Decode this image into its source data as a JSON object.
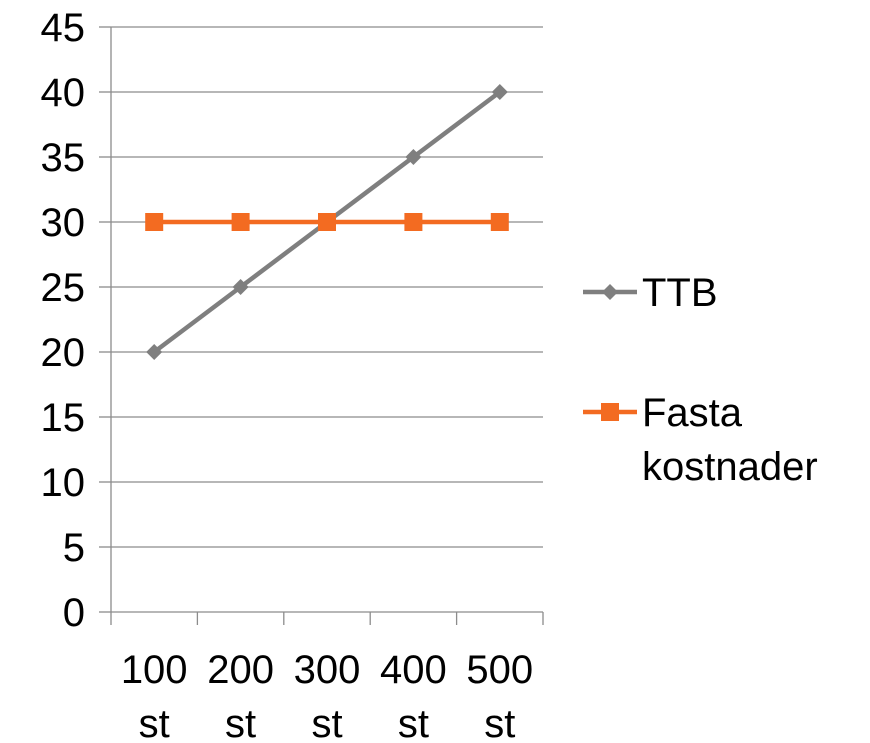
{
  "chart_data": {
    "type": "line",
    "title": "",
    "xlabel": "",
    "ylabel": "",
    "categories": [
      [
        "100",
        "st"
      ],
      [
        "200",
        "st"
      ],
      [
        "300",
        "st"
      ],
      [
        "400",
        "st"
      ],
      [
        "500",
        "st"
      ]
    ],
    "ylim": [
      0,
      45
    ],
    "ytick_step": 5,
    "grid": true,
    "legend_position": "right",
    "series": [
      {
        "name": "TTB",
        "values": [
          20,
          25,
          30,
          35,
          40
        ],
        "color": "#7f7f7f",
        "marker": "diamond"
      },
      {
        "name": "Fasta kostnader",
        "name_lines": [
          "Fasta",
          "kostnader"
        ],
        "values": [
          30,
          30,
          30,
          30,
          30
        ],
        "color": "#f36b21",
        "marker": "square"
      }
    ]
  }
}
